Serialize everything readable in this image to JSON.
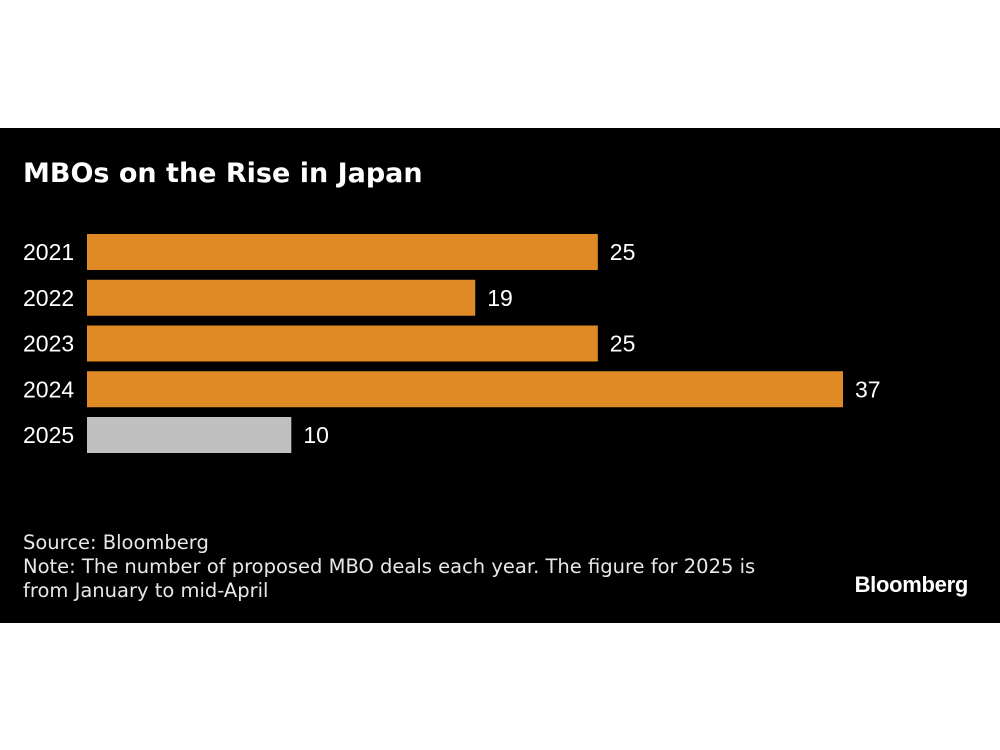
{
  "chart_data": {
    "type": "bar",
    "orientation": "horizontal",
    "title": "MBOs on the Rise in Japan",
    "categories": [
      "2021",
      "2022",
      "2023",
      "2024",
      "2025"
    ],
    "values": [
      25,
      19,
      25,
      37,
      10
    ],
    "colors": [
      "#e08a26",
      "#e08a26",
      "#e08a26",
      "#e08a26",
      "#c0c0c0"
    ],
    "xlim": [
      0,
      37
    ],
    "grid": false,
    "data_labels": true
  },
  "footer": {
    "source": "Source: Bloomberg",
    "note_line1": "Note: The number of proposed MBO deals each year. The figure for 2025 is",
    "note_line2": "from January to mid-April"
  },
  "brand": {
    "logo_text": "Bloomberg"
  },
  "colors": {
    "background": "#000000",
    "accent": "#e08a26",
    "highlight_gray": "#c0c0c0",
    "text": "#ffffff"
  }
}
